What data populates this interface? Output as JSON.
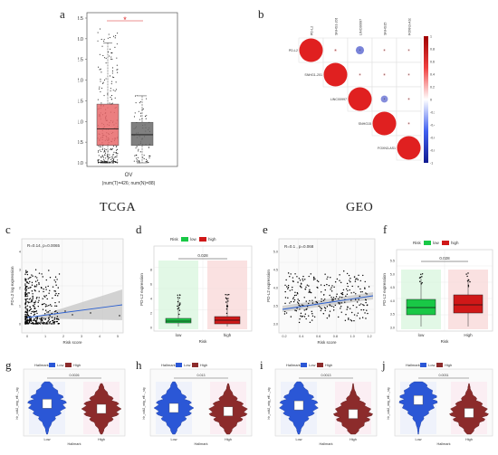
{
  "figure": {
    "section_left": "TCGA",
    "section_right": "GEO",
    "panel_labels": {
      "a": "a",
      "b": "b",
      "c": "c",
      "d": "d",
      "e": "e",
      "f": "f",
      "g": "g",
      "h": "h",
      "i": "i",
      "j": "j"
    }
  },
  "chart_data": [
    {
      "panel": "a",
      "type": "box",
      "categories": [
        "OV"
      ],
      "yticks": [
        "0.0",
        "0.5",
        "1.0",
        "1.5",
        "2.0",
        "2.5",
        "3.0",
        "3.5"
      ],
      "ylim": [
        0,
        3.5
      ],
      "significance": "*",
      "xlabel": "OV",
      "sublabel": "(num(T)=426; num(N)=88)",
      "series": [
        {
          "group": "T",
          "q1": 0.42,
          "median": 0.82,
          "q3": 1.42,
          "whisker_low": 0.0,
          "whisker_high": 2.9
        },
        {
          "group": "N",
          "q1": 0.42,
          "median": 0.68,
          "q3": 0.98,
          "whisker_low": 0.0,
          "whisker_high": 1.62
        }
      ],
      "colors": {
        "tumor": "#e8696b",
        "normal": "#6b6b6b"
      }
    },
    {
      "panel": "b",
      "type": "heatmap",
      "variables": [
        "PD-L2",
        "SNHG1-201",
        "LINC00997",
        "SNHG15",
        "FOXN3-AS1"
      ],
      "scale_ticks": [
        "1",
        "0.8",
        "0.6",
        "0.4",
        "0.2",
        "0",
        "-0.2",
        "-0.4",
        "-0.6",
        "-0.8",
        "-1"
      ],
      "colors": {
        "positive": "#e02020",
        "negative": "#2030c0"
      }
    },
    {
      "panel": "c",
      "type": "scatter",
      "annotation": "R=0.14, p=0.0065",
      "xlabel": "Risk score",
      "ylabel": "PD-L2 log expression",
      "xticks": [
        "0",
        "1",
        "2",
        "3",
        "4",
        "5"
      ],
      "yticks": [
        "0",
        "1",
        "2",
        "3",
        "4"
      ]
    },
    {
      "panel": "d",
      "type": "box",
      "legend_title": "Risk",
      "legend": [
        "low",
        "high"
      ],
      "categories": [
        "low",
        "high"
      ],
      "xlabel": "Risk",
      "ylabel": "PD-L2 expression",
      "pvalue": "0.028",
      "yticks": [
        "0",
        "2",
        "4",
        "6",
        "8"
      ],
      "colors": {
        "low": "#19c846",
        "high": "#d01818"
      }
    },
    {
      "panel": "e",
      "type": "scatter",
      "annotation": "R=0.1 , p=0.068",
      "xlabel": "Risk score",
      "ylabel": "PD-L2 expression",
      "xticks": [
        "0.2",
        "0.4",
        "0.6",
        "0.8",
        "1.0",
        "1.2"
      ],
      "yticks": [
        "3.0",
        "3.5",
        "4.0",
        "4.5",
        "5.0"
      ]
    },
    {
      "panel": "f",
      "type": "box",
      "legend_title": "Risk",
      "legend": [
        "low",
        "high"
      ],
      "categories": [
        "low",
        "High"
      ],
      "xlabel": "Risk",
      "ylabel": "PD-L2 expression",
      "pvalue": "0.028",
      "yticks": [
        "3.0",
        "3.5",
        "4.0",
        "4.5",
        "5.0",
        "5.5"
      ],
      "colors": {
        "low": "#19c846",
        "high": "#d01818"
      }
    },
    {
      "panel": "g",
      "type": "violin",
      "legend_title": "Hallmark",
      "legend": [
        "Low",
        "High"
      ],
      "categories": [
        "Low",
        "High"
      ],
      "xlabel": "Hallmark",
      "ylabel": "hh_cdk2_mtg_eff..._sig",
      "pvalue": "0.0026",
      "colors": {
        "low": "#2b57d6",
        "high": "#8c2b2b"
      }
    },
    {
      "panel": "h",
      "type": "violin",
      "legend_title": "Hallmark",
      "legend": [
        "Low",
        "High"
      ],
      "categories": [
        "Low",
        "High"
      ],
      "xlabel": "Hallmark",
      "ylabel": "hh_cdk2_mtg_eff..._sig",
      "pvalue": "0.013",
      "colors": {
        "low": "#2b57d6",
        "high": "#8c2b2b"
      }
    },
    {
      "panel": "i",
      "type": "violin",
      "legend_title": "Hallmark",
      "legend": [
        "Low",
        "High"
      ],
      "categories": [
        "Low",
        "High"
      ],
      "xlabel": "Hallmark",
      "ylabel": "hh_cdk2_mtg_eff..._sig",
      "pvalue": "0.0013",
      "colors": {
        "low": "#2b57d6",
        "high": "#8c2b2b"
      }
    },
    {
      "panel": "j",
      "type": "violin",
      "legend_title": "Hallmark",
      "legend": [
        "Low",
        "High"
      ],
      "categories": [
        "Low",
        "High"
      ],
      "xlabel": "Hallmark",
      "ylabel": "hh_cdk2_mtg_eff..._sig",
      "pvalue": "0.0031",
      "colors": {
        "low": "#2b57d6",
        "high": "#8c2b2b"
      }
    }
  ]
}
